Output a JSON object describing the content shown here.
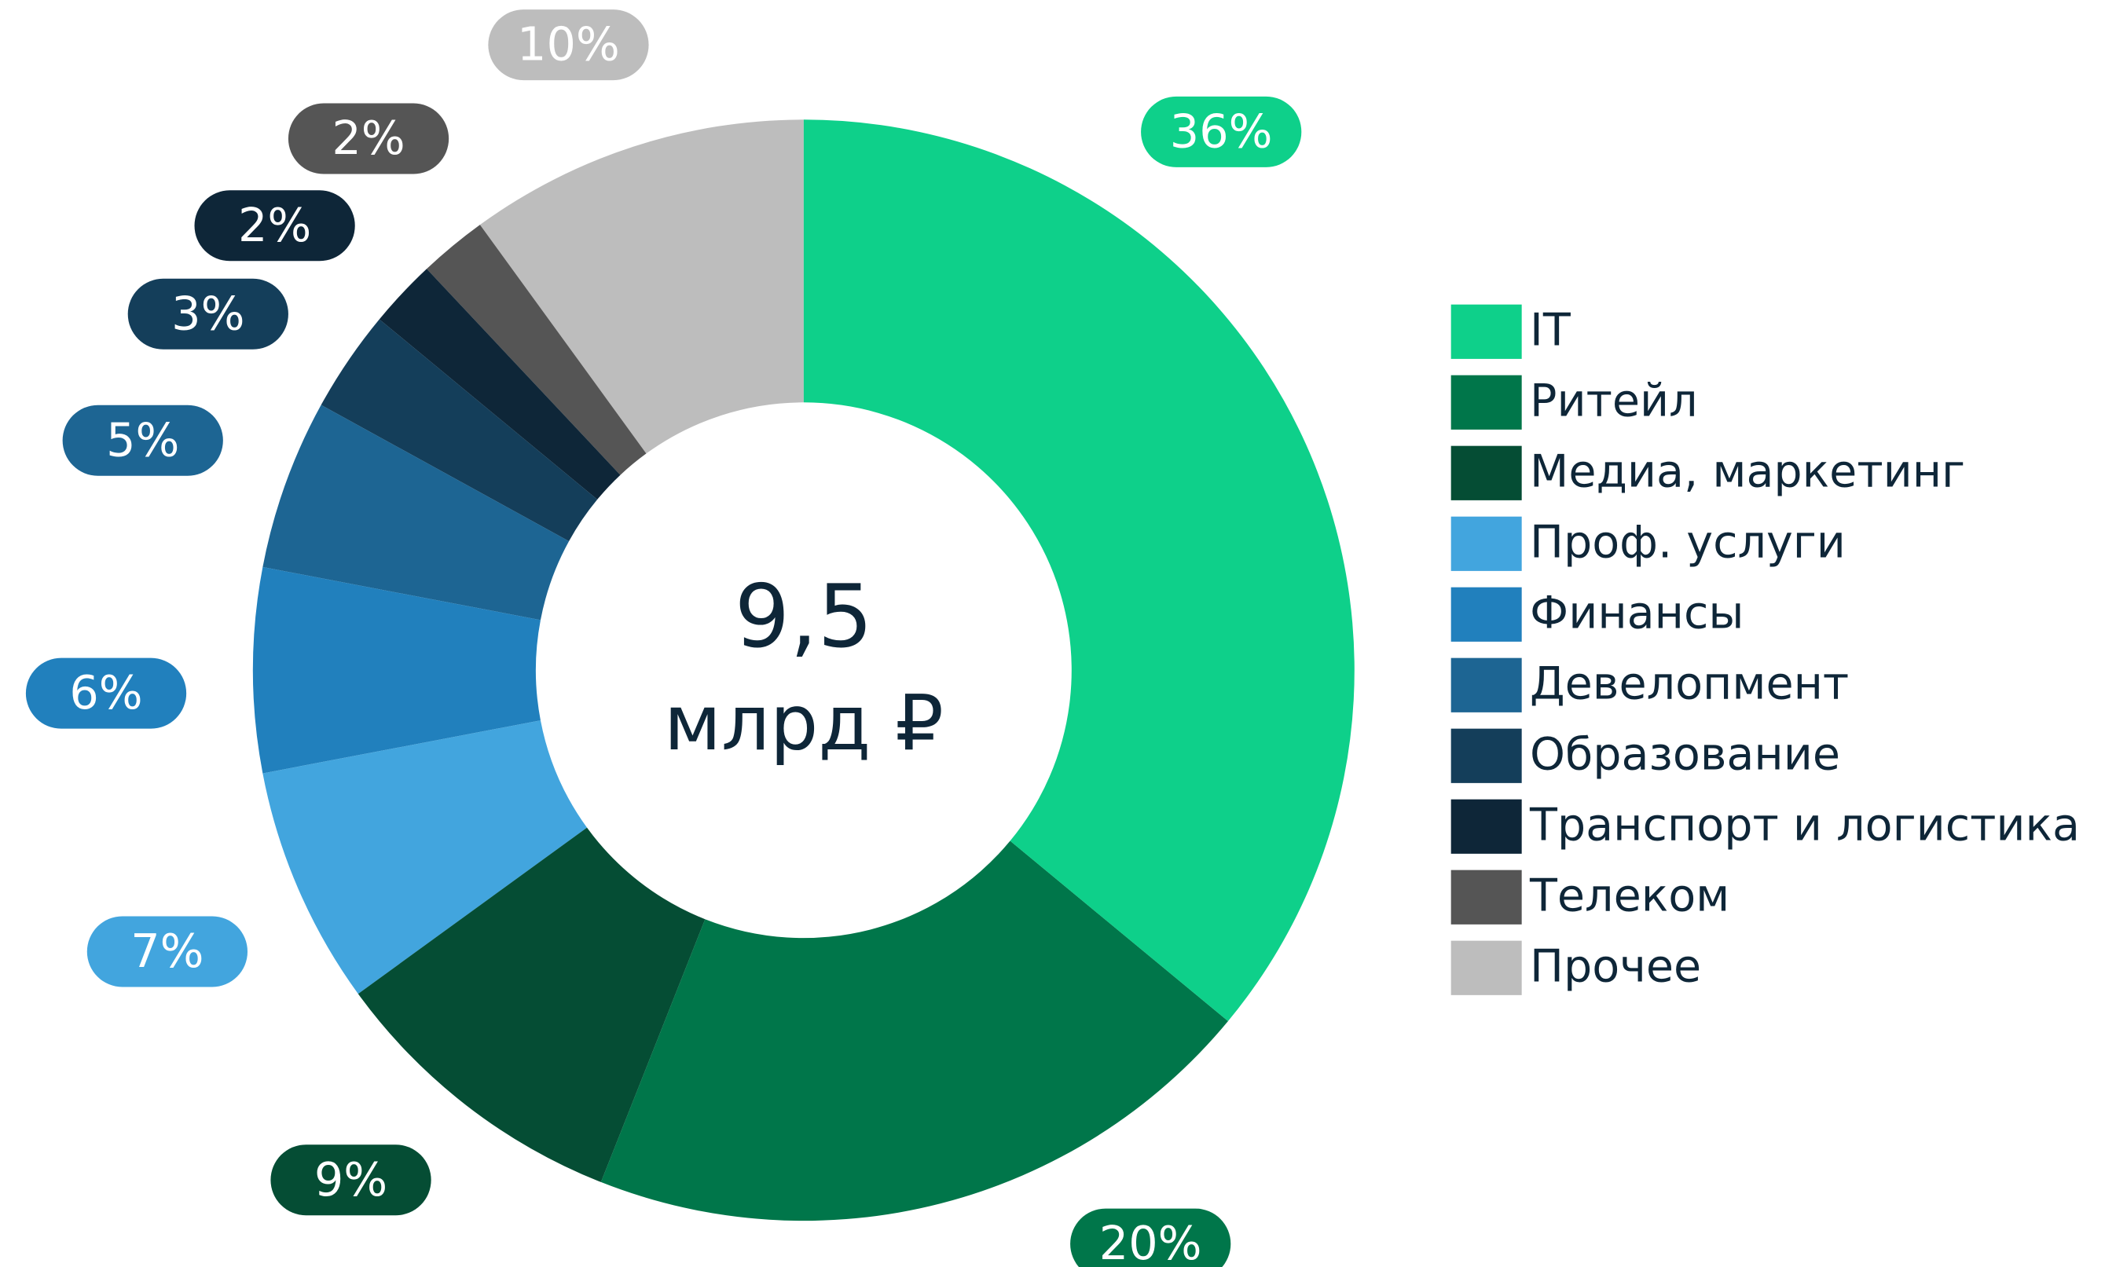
{
  "chart_data": {
    "type": "donut",
    "center_text": [
      "9,5",
      "млрд ₽"
    ],
    "categories": [
      "IT",
      "Ритейл",
      "Медиа, маркетинг",
      "Проф. услуги",
      "Финансы",
      "Девелопмент",
      "Образование",
      "Транспорт и логистика",
      "Телеком",
      "Прочее"
    ],
    "values": [
      36,
      20,
      9,
      7,
      6,
      5,
      3,
      2,
      2,
      10
    ],
    "value_labels": [
      "36%",
      "20%",
      "9%",
      "7%",
      "6%",
      "5%",
      "3%",
      "2%",
      "2%",
      "10%"
    ],
    "colors": [
      "#0ed08a",
      "#00764a",
      "#054d34",
      "#42a5de",
      "#2180bd",
      "#1d6593",
      "#143e5a",
      "#0e2638",
      "#555555",
      "#bdbdbd"
    ],
    "legend": "right"
  }
}
